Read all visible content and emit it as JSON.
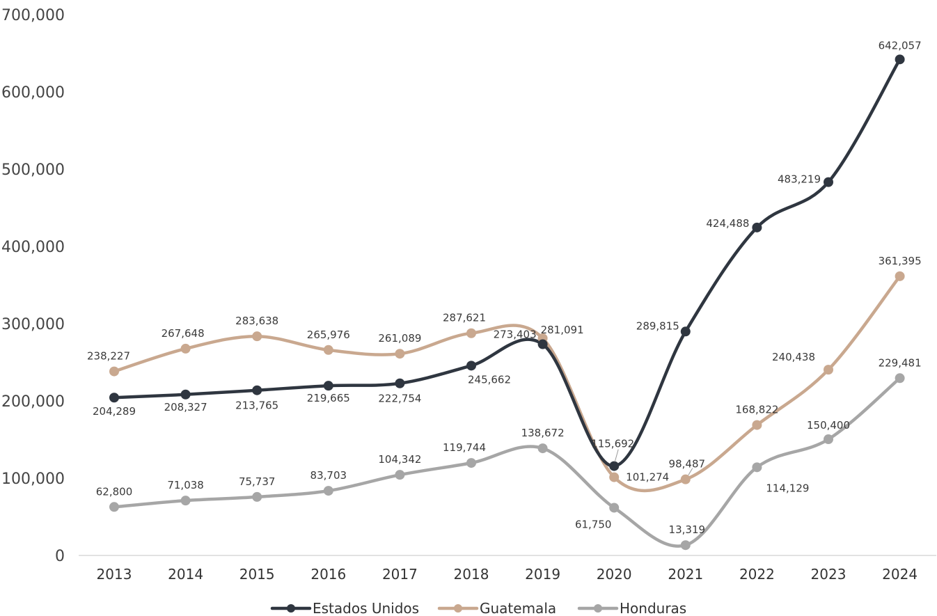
{
  "chart_data": {
    "type": "line",
    "title": "",
    "xlabel": "",
    "ylabel": "",
    "ylim": [
      0,
      700000
    ],
    "yticks": [
      0,
      100000,
      200000,
      300000,
      400000,
      500000,
      600000,
      700000
    ],
    "ytick_labels": [
      "0",
      "100,000",
      "200,000",
      "300,000",
      "400,000",
      "500,000",
      "600,000",
      "700,000"
    ],
    "categories": [
      "2013",
      "2014",
      "2015",
      "2016",
      "2017",
      "2018",
      "2019",
      "2020",
      "2021",
      "2022",
      "2023",
      "2024"
    ],
    "grid": false,
    "legend_position": "bottom",
    "series": [
      {
        "name": "Estados Unidos",
        "color": "#2f3640",
        "values": [
          204289,
          208327,
          213765,
          219665,
          222754,
          245662,
          273403,
          115692,
          289815,
          424488,
          483219,
          642057
        ],
        "labels": [
          "204,289",
          "208,327",
          "213,765",
          "219,665",
          "222,754",
          "245,662",
          "273,403",
          "115,692",
          "289,815",
          "424,488",
          "483,219",
          "642,057"
        ]
      },
      {
        "name": "Guatemala",
        "color": "#c9a88f",
        "values": [
          238227,
          267648,
          283638,
          265976,
          261089,
          287621,
          281091,
          101274,
          98487,
          168822,
          240438,
          361395
        ],
        "labels": [
          "238,227",
          "267,648",
          "283,638",
          "265,976",
          "261,089",
          "287,621",
          "281,091",
          "101,274",
          "98,487",
          "168,822",
          "240,438",
          "361,395"
        ]
      },
      {
        "name": "Honduras",
        "color": "#a6a6a6",
        "values": [
          62800,
          71038,
          75737,
          83703,
          104342,
          119744,
          138672,
          61750,
          13319,
          114129,
          150400,
          229481
        ],
        "labels": [
          "62,800",
          "71,038",
          "75,737",
          "83,703",
          "104,342",
          "119,744",
          "138,672",
          "61,750",
          "13,319",
          "114,129",
          "150,400",
          "229,481"
        ]
      }
    ]
  }
}
